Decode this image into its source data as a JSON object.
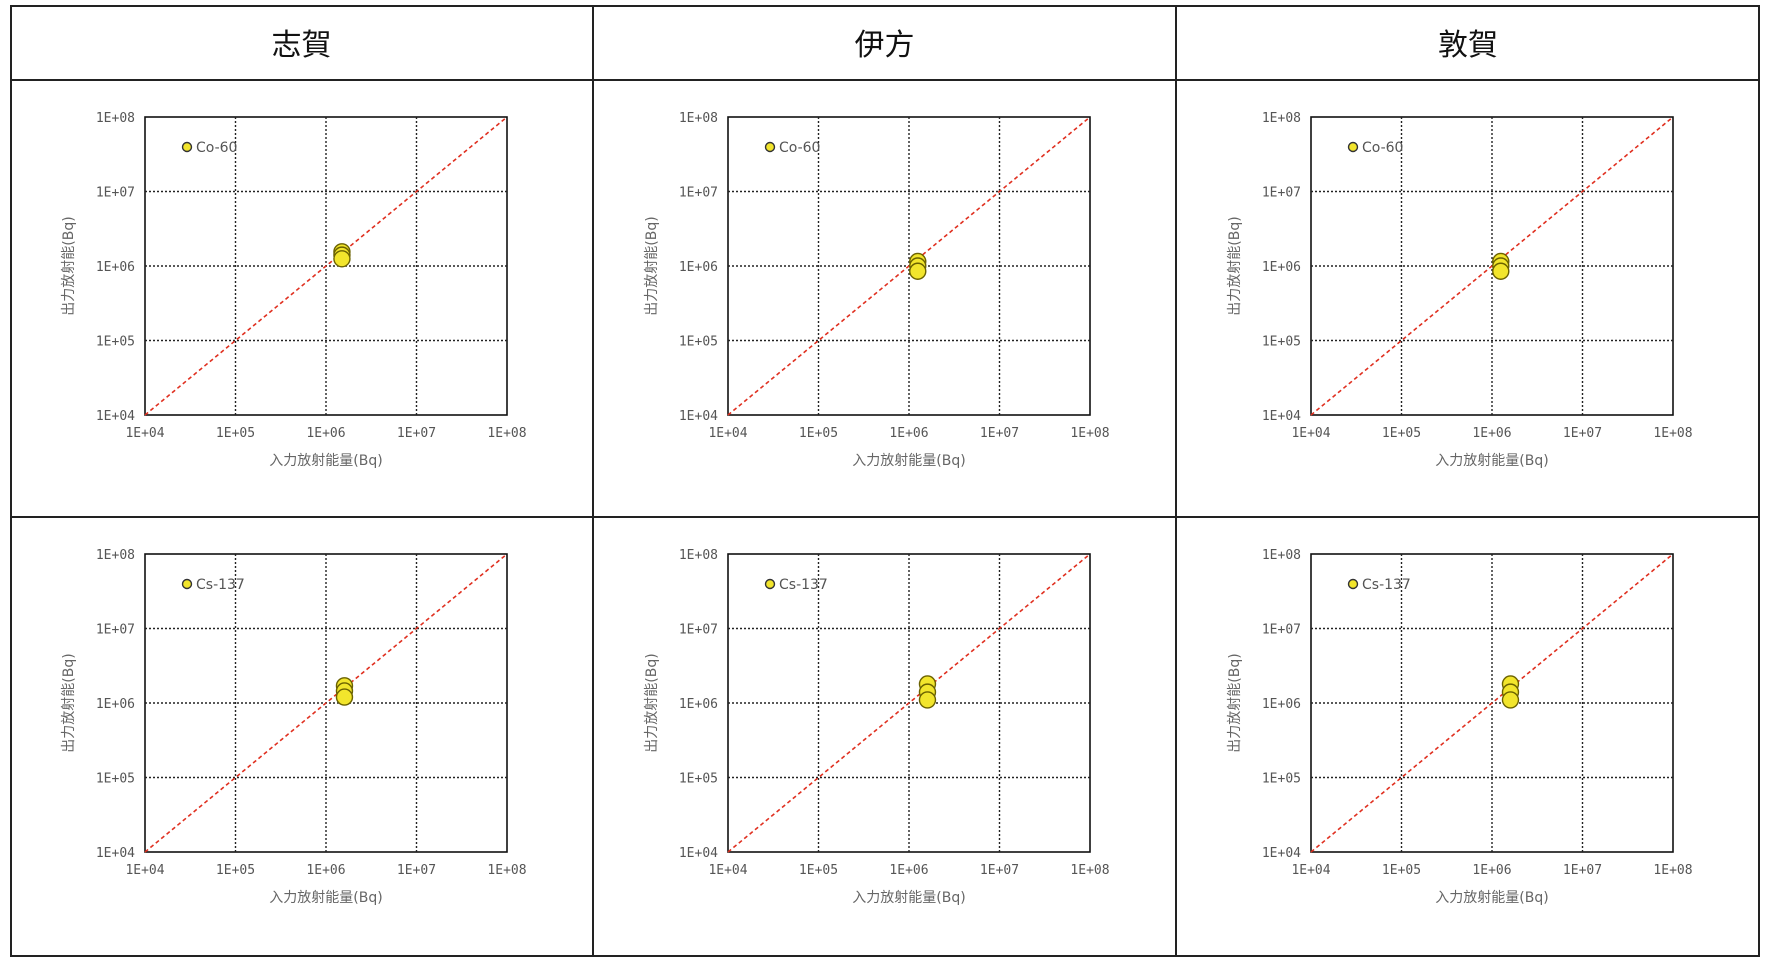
{
  "headers": [
    "志賀",
    "伊方",
    "敦賀"
  ],
  "axis": {
    "xlabel": "入力放射能量(Bq)",
    "ylabel": "出力放射能(Bq)",
    "ticks": [
      "1E+04",
      "1E+05",
      "1E+06",
      "1E+07",
      "1E+08"
    ],
    "log_range": [
      4,
      8
    ],
    "scale": "log",
    "grid": true,
    "reference_line": "y = x (red dashed)"
  },
  "colors": {
    "marker": "#f2e52c",
    "reference_line": "#e03020"
  },
  "chart_data": [
    {
      "type": "scatter",
      "site": "志賀",
      "legend": "Co-60",
      "legend_position": "top-left",
      "points": [
        [
          1500000,
          1550000
        ],
        [
          1500000,
          1400000
        ],
        [
          1500000,
          1250000
        ]
      ]
    },
    {
      "type": "scatter",
      "site": "伊方",
      "legend": "Co-60",
      "legend_position": "top-left",
      "points": [
        [
          1250000,
          1150000
        ],
        [
          1250000,
          1000000
        ],
        [
          1250000,
          850000
        ]
      ]
    },
    {
      "type": "scatter",
      "site": "敦賀",
      "legend": "Co-60",
      "legend_position": "top-left",
      "points": [
        [
          1250000,
          1150000
        ],
        [
          1250000,
          1000000
        ],
        [
          1250000,
          850000
        ]
      ]
    },
    {
      "type": "scatter",
      "site": "志賀",
      "legend": "Cs-137",
      "legend_position": "top-left",
      "points": [
        [
          1600000,
          1700000
        ],
        [
          1600000,
          1450000
        ],
        [
          1600000,
          1200000
        ]
      ]
    },
    {
      "type": "scatter",
      "site": "伊方",
      "legend": "Cs-137",
      "legend_position": "top-left",
      "points": [
        [
          1600000,
          1800000
        ],
        [
          1600000,
          1400000
        ],
        [
          1600000,
          1100000
        ]
      ]
    },
    {
      "type": "scatter",
      "site": "敦賀",
      "legend": "Cs-137",
      "legend_position": "top-left",
      "points": [
        [
          1600000,
          1800000
        ],
        [
          1600000,
          1400000
        ],
        [
          1600000,
          1100000
        ]
      ]
    }
  ]
}
